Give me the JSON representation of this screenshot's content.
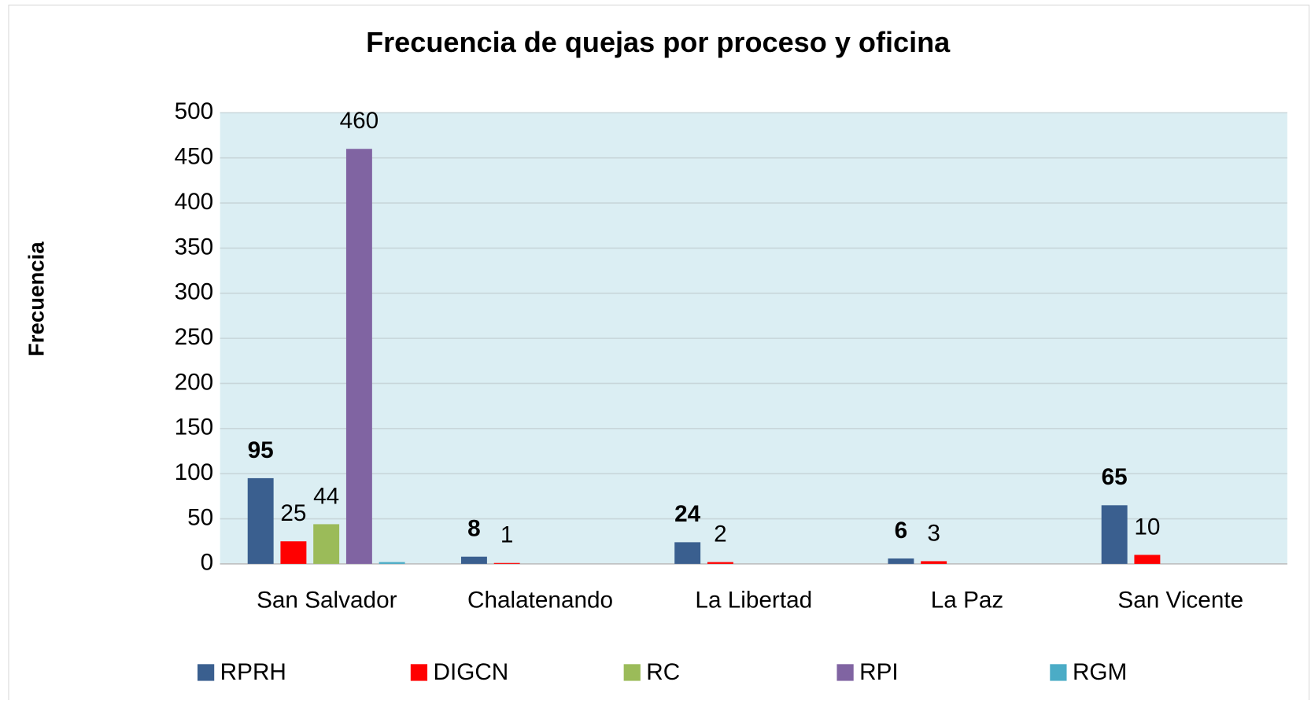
{
  "chart_data": {
    "type": "bar",
    "title": "Frecuencia de quejas por proceso y oficina",
    "y_label": "Frecuencia",
    "categories": [
      "San Salvador",
      "Chalatenando",
      "La Libertad",
      "La Paz",
      "San Vicente"
    ],
    "series": [
      {
        "name": "RPRH",
        "color": "#3a5f8f",
        "values": [
          95,
          8,
          24,
          6,
          65
        ],
        "data_labels": true,
        "label_bold": true
      },
      {
        "name": "DIGCN",
        "color": "#ff0000",
        "values": [
          25,
          1,
          2,
          3,
          10
        ],
        "data_labels": true,
        "label_bold": false
      },
      {
        "name": "RC",
        "color": "#9bbb59",
        "values": [
          44,
          null,
          null,
          null,
          null
        ],
        "data_labels": true,
        "label_bold": false
      },
      {
        "name": "RPI",
        "color": "#8064a2",
        "values": [
          460,
          null,
          null,
          null,
          null
        ],
        "data_labels": true,
        "label_bold": false
      },
      {
        "name": "RGM",
        "color": "#4bacc6",
        "values": [
          2,
          null,
          null,
          null,
          null
        ],
        "data_labels": false,
        "label_bold": false
      }
    ],
    "ylim": [
      0,
      500
    ],
    "yticks": [
      0,
      50,
      100,
      150,
      200,
      250,
      300,
      350,
      400,
      450,
      500
    ],
    "grid": true,
    "legend": "bottom",
    "plot_background": "#dbeef3"
  }
}
